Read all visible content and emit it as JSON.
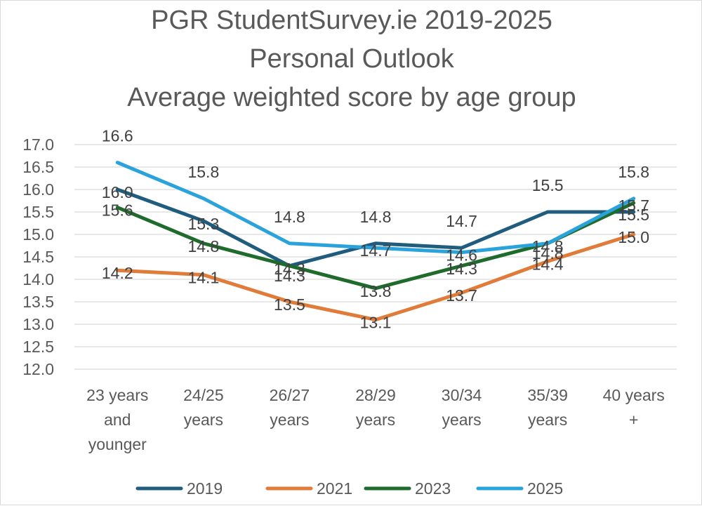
{
  "chart_data": {
    "type": "line",
    "title": [
      "PGR StudentSurvey.ie 2019-2025",
      "Personal Outlook",
      "Average weighted score by age group"
    ],
    "categories": [
      [
        "23 years",
        "and",
        "younger"
      ],
      [
        "24/25",
        "years"
      ],
      [
        "26/27",
        "years"
      ],
      [
        "28/29",
        "years"
      ],
      [
        "30/34",
        "years"
      ],
      [
        "35/39",
        "years"
      ],
      [
        "40 years",
        "+"
      ]
    ],
    "ylim": [
      12.0,
      17.0
    ],
    "ytick_step": 0.5,
    "yticks": [
      "12.0",
      "12.5",
      "13.0",
      "13.5",
      "14.0",
      "14.5",
      "15.0",
      "15.5",
      "16.0",
      "16.5",
      "17.0"
    ],
    "grid": true,
    "legend_position": "bottom",
    "series": [
      {
        "name": "2019",
        "color": "#1f5c7e",
        "values": [
          16.0,
          15.3,
          14.3,
          14.8,
          14.7,
          15.5,
          15.5
        ],
        "labels": [
          "16.0",
          "15.3",
          "14.3",
          "14.8",
          "14.7",
          "15.5",
          "15.5"
        ]
      },
      {
        "name": "2021",
        "color": "#e07b39",
        "values": [
          14.2,
          14.1,
          13.5,
          13.1,
          13.7,
          14.4,
          15.0
        ],
        "labels": [
          "14.2",
          "14.1",
          "13.5",
          "13.1",
          "13.7",
          "14.4",
          "15.0"
        ]
      },
      {
        "name": "2023",
        "color": "#1e6b2c",
        "values": [
          15.6,
          14.8,
          14.3,
          13.8,
          14.3,
          14.8,
          15.7
        ],
        "labels": [
          "15.6",
          "14.8",
          "14.3",
          "13.8",
          "14.3",
          "14.8",
          "15.7"
        ]
      },
      {
        "name": "2025",
        "color": "#2aa3dc",
        "values": [
          16.6,
          15.8,
          14.8,
          14.7,
          14.6,
          14.8,
          15.8
        ],
        "labels": [
          "16.6",
          "15.8",
          "14.8",
          "14.7",
          "14.6",
          "14.8",
          "15.8"
        ]
      }
    ]
  }
}
